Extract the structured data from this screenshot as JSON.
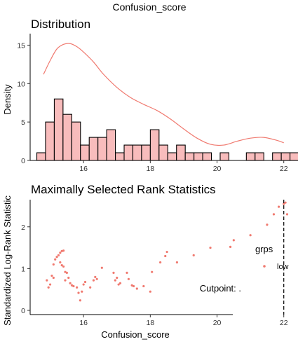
{
  "main_title": "Confusion_score",
  "chart_data": [
    {
      "type": "bar",
      "title": "Distribution",
      "xlabel": "",
      "ylabel": "Density",
      "xlim": [
        14.4,
        22.3
      ],
      "ylim": [
        0,
        16.5
      ],
      "xticks": [
        16,
        18,
        20,
        22
      ],
      "yticks": [
        0,
        5,
        10,
        15
      ],
      "bars": {
        "start": 14.6,
        "bin_width": 0.2616,
        "values": [
          1,
          5,
          8,
          6,
          5,
          2,
          3,
          3,
          4,
          1,
          2,
          2,
          2,
          4,
          2,
          1,
          2,
          1,
          1,
          1,
          0,
          1,
          0,
          0,
          1,
          1,
          0,
          1,
          1,
          1,
          2
        ]
      },
      "density_curve": {
        "x": [
          14.8,
          15.0,
          15.2,
          15.4,
          15.6,
          15.8,
          16.0,
          16.3,
          16.6,
          17.0,
          17.4,
          17.8,
          18.2,
          18.6,
          19.0,
          19.4,
          19.8,
          20.2,
          20.6,
          21.0,
          21.4,
          21.8,
          22.0
        ],
        "y": [
          11.2,
          13.0,
          14.5,
          15.1,
          15.2,
          14.8,
          14.1,
          12.8,
          11.2,
          9.5,
          8.2,
          7.3,
          6.5,
          5.4,
          4.1,
          2.9,
          2.1,
          2.0,
          2.5,
          2.9,
          3.0,
          2.6,
          2.3
        ]
      },
      "bar_fill": "#F8BCBC",
      "curve_color": "#F07A70"
    },
    {
      "type": "scatter",
      "title": "Maximally Selected Rank Statistics",
      "xlabel": "Confusion_score",
      "ylabel": "Standardized Log-Rank Statistic",
      "xlim": [
        14.4,
        22.3
      ],
      "ylim": [
        -0.1,
        2.65
      ],
      "xticks": [
        16,
        18,
        20,
        22
      ],
      "yticks": [
        0,
        1,
        2
      ],
      "points": [
        [
          14.9,
          0.72
        ],
        [
          14.95,
          0.55
        ],
        [
          15.0,
          0.62
        ],
        [
          15.05,
          0.83
        ],
        [
          15.1,
          1.1
        ],
        [
          15.1,
          0.78
        ],
        [
          15.15,
          1.22
        ],
        [
          15.2,
          1.28
        ],
        [
          15.25,
          1.32
        ],
        [
          15.3,
          1.38
        ],
        [
          15.35,
          1.42
        ],
        [
          15.4,
          1.43
        ],
        [
          15.3,
          1.15
        ],
        [
          15.35,
          1.08
        ],
        [
          15.4,
          1.05
        ],
        [
          15.45,
          0.92
        ],
        [
          15.5,
          0.9
        ],
        [
          15.55,
          0.78
        ],
        [
          15.45,
          0.72
        ],
        [
          15.6,
          0.65
        ],
        [
          15.65,
          0.6
        ],
        [
          15.7,
          0.58
        ],
        [
          15.8,
          0.55
        ],
        [
          15.85,
          0.42
        ],
        [
          15.9,
          0.24
        ],
        [
          15.95,
          0.45
        ],
        [
          16.0,
          0.62
        ],
        [
          16.05,
          0.68
        ],
        [
          16.2,
          0.55
        ],
        [
          16.3,
          0.72
        ],
        [
          16.35,
          0.8
        ],
        [
          16.4,
          0.75
        ],
        [
          16.55,
          1.02
        ],
        [
          16.9,
          0.9
        ],
        [
          16.95,
          0.72
        ],
        [
          17.0,
          0.78
        ],
        [
          17.05,
          0.62
        ],
        [
          17.1,
          0.65
        ],
        [
          17.3,
          0.9
        ],
        [
          17.35,
          0.75
        ],
        [
          17.45,
          0.6
        ],
        [
          17.5,
          0.58
        ],
        [
          17.6,
          0.52
        ],
        [
          17.8,
          0.58
        ],
        [
          18.0,
          0.45
        ],
        [
          18.05,
          0.92
        ],
        [
          18.3,
          1.15
        ],
        [
          18.45,
          1.3
        ],
        [
          18.5,
          1.4
        ],
        [
          18.8,
          1.15
        ],
        [
          19.3,
          1.32
        ],
        [
          19.8,
          1.5
        ],
        [
          20.4,
          1.52
        ],
        [
          20.5,
          1.68
        ],
        [
          21.0,
          1.8
        ],
        [
          21.5,
          2.05
        ],
        [
          21.7,
          2.3
        ],
        [
          21.85,
          2.48
        ],
        [
          22.0,
          2.55
        ],
        [
          22.05,
          2.58
        ],
        [
          22.1,
          2.3
        ]
      ],
      "point_color": "#F07A70",
      "cutpoint": {
        "value": 22.0,
        "label": "Cutpoint: ."
      },
      "legend": {
        "title": "grps",
        "items": [
          "low"
        ],
        "placement": "right"
      }
    }
  ]
}
